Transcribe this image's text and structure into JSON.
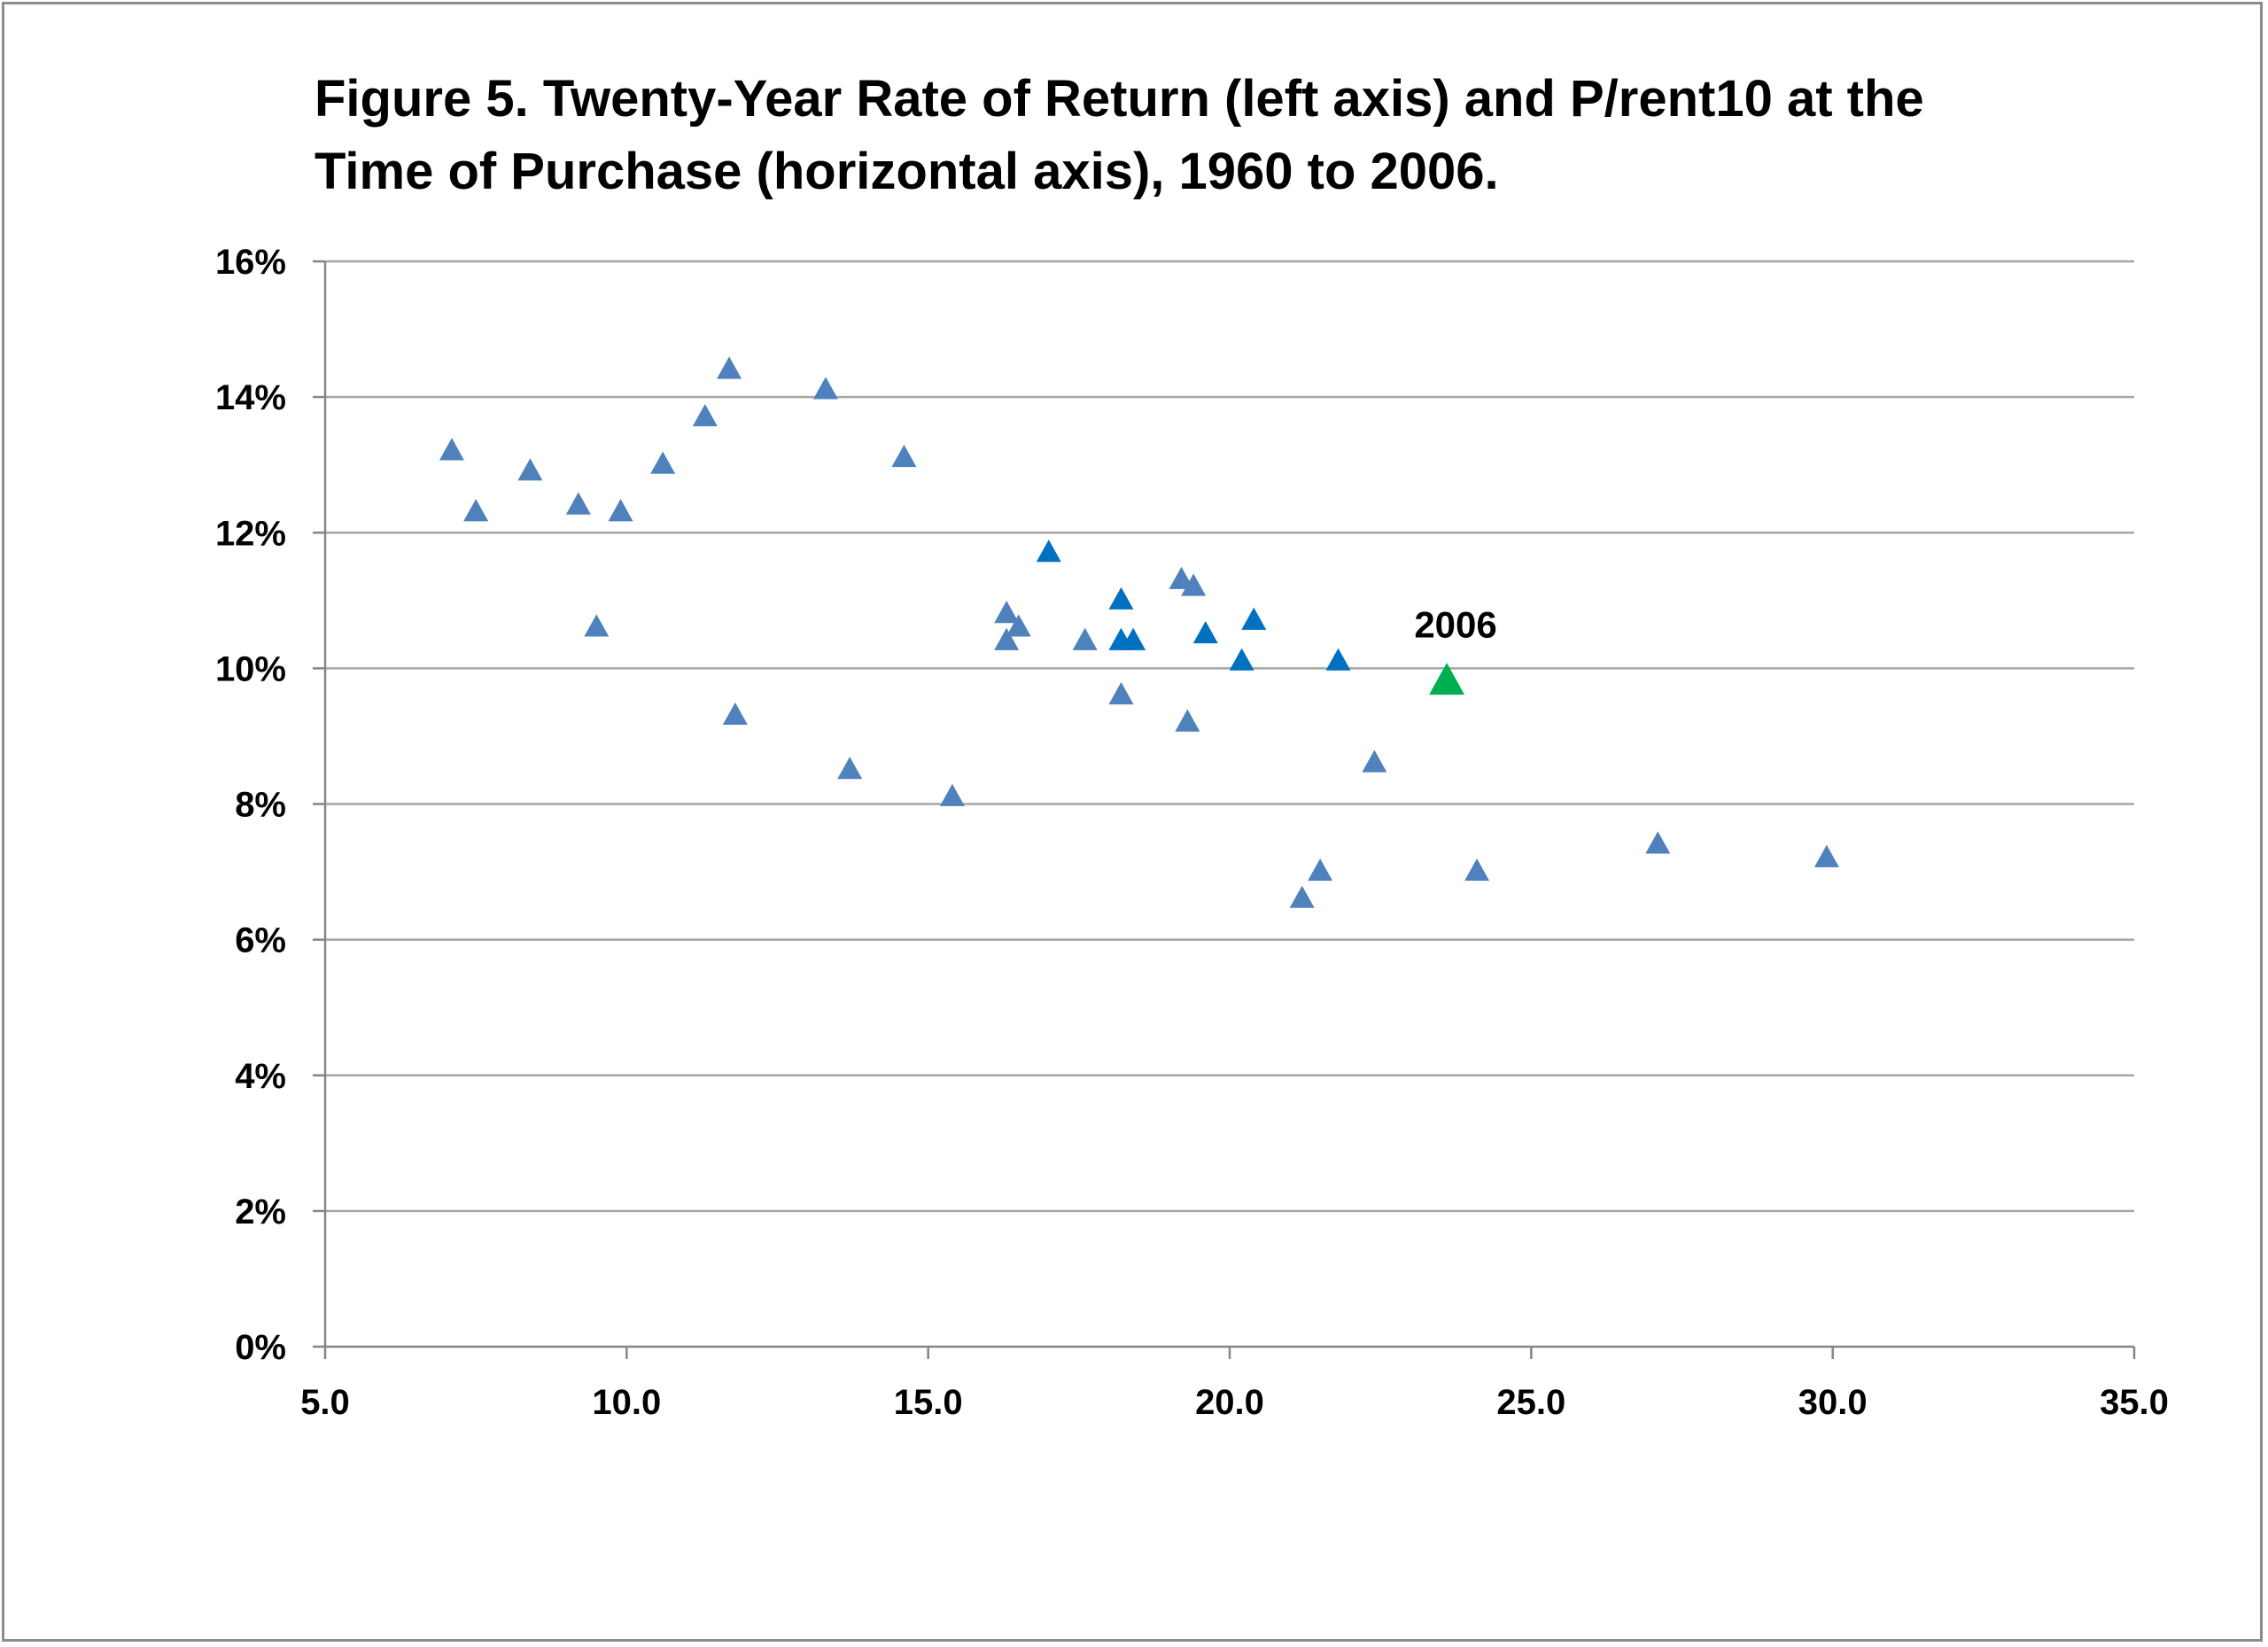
{
  "chart_data": {
    "type": "scatter",
    "title_lines": [
      "Figure 5.  Twenty-Year Rate of Return (left axis) and P/rent10 at the",
      "Time of Purchase (horizontal axis), 1960 to 2006."
    ],
    "xlabel": "",
    "ylabel": "",
    "xlim": [
      5.0,
      35.0
    ],
    "ylim": [
      0,
      0.16
    ],
    "x_ticks": [
      5,
      10,
      15,
      20,
      25,
      30,
      35
    ],
    "x_tick_labels": [
      "5.0",
      "10.0",
      "15.0",
      "20.0",
      "25.0",
      "30.0",
      "35.0"
    ],
    "y_ticks": [
      0,
      0.02,
      0.04,
      0.06,
      0.08,
      0.1,
      0.12,
      0.14,
      0.16
    ],
    "y_tick_labels": [
      "0%",
      "2%",
      "4%",
      "6%",
      "8%",
      "10%",
      "12%",
      "14%",
      "16%"
    ],
    "grid": true,
    "legend": "none",
    "marker": "triangle",
    "colors": {
      "light": "#4f81bd",
      "dark": "#0070c0",
      "highlight": "#00b050",
      "grid": "#a6a6a6",
      "axis": "#868686"
    },
    "series": [
      {
        "color_key": "light",
        "points": [
          [
            7.1,
            0.132
          ],
          [
            7.5,
            0.123
          ],
          [
            8.4,
            0.129
          ],
          [
            9.2,
            0.124
          ],
          [
            9.5,
            0.106
          ],
          [
            9.9,
            0.123
          ],
          [
            10.6,
            0.13
          ],
          [
            11.3,
            0.137
          ],
          [
            11.7,
            0.144
          ],
          [
            11.8,
            0.093
          ],
          [
            13.3,
            0.141
          ],
          [
            13.7,
            0.085
          ],
          [
            14.6,
            0.131
          ],
          [
            15.4,
            0.081
          ],
          [
            16.3,
            0.108
          ],
          [
            16.3,
            0.104
          ],
          [
            16.5,
            0.106
          ],
          [
            17.6,
            0.104
          ],
          [
            18.2,
            0.096
          ],
          [
            19.2,
            0.113
          ],
          [
            19.3,
            0.092
          ],
          [
            19.4,
            0.112
          ],
          [
            21.2,
            0.066
          ],
          [
            21.5,
            0.07
          ],
          [
            22.4,
            0.086
          ],
          [
            24.1,
            0.07
          ],
          [
            27.1,
            0.074
          ],
          [
            29.9,
            0.072
          ]
        ]
      },
      {
        "color_key": "dark",
        "points": [
          [
            17.0,
            0.117
          ],
          [
            18.2,
            0.11
          ],
          [
            18.2,
            0.104
          ],
          [
            18.4,
            0.104
          ],
          [
            19.6,
            0.105
          ],
          [
            20.2,
            0.101
          ],
          [
            20.4,
            0.107
          ],
          [
            21.8,
            0.101
          ]
        ]
      },
      {
        "color_key": "highlight",
        "points": [
          [
            23.6,
            0.098
          ]
        ]
      }
    ],
    "annotations": [
      {
        "text": "2006",
        "x": 23.6,
        "y": 0.098
      }
    ]
  }
}
